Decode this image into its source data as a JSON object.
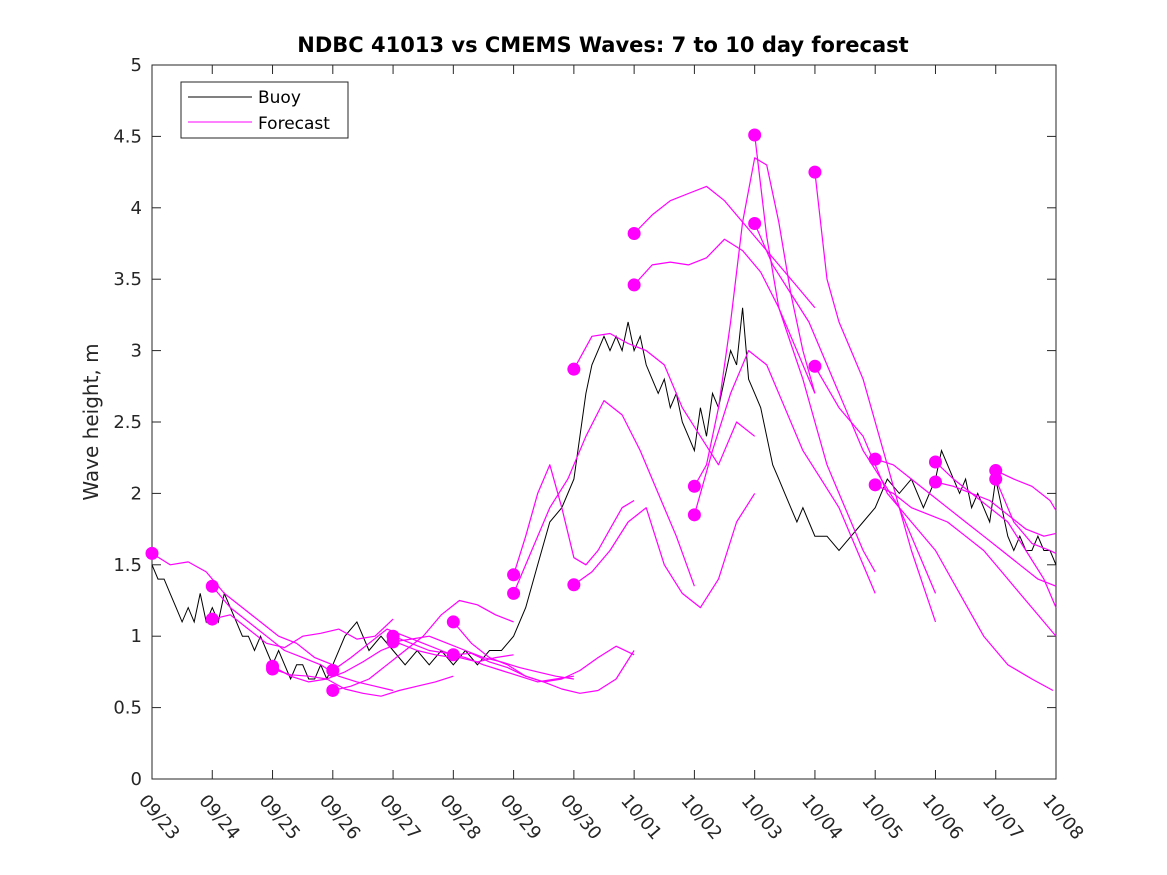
{
  "chart_data": {
    "type": "line",
    "title": "NDBC 41013 vs CMEMS Waves: 7 to 10 day forecast",
    "xlabel": "",
    "ylabel": "Wave height, m",
    "xlim": [
      0,
      15
    ],
    "ylim": [
      0,
      5
    ],
    "x_tick_labels": [
      "09/23",
      "09/24",
      "09/25",
      "09/26",
      "09/27",
      "09/28",
      "09/29",
      "09/30",
      "10/01",
      "10/02",
      "10/03",
      "10/04",
      "10/05",
      "10/06",
      "10/07",
      "10/08"
    ],
    "y_tick_labels": [
      "0",
      "0.5",
      "1",
      "1.5",
      "2",
      "2.5",
      "3",
      "3.5",
      "4",
      "4.5",
      "5"
    ],
    "legend": [
      "Buoy",
      "Forecast"
    ],
    "legend_position": "top-left",
    "colors": {
      "buoy": "#000000",
      "forecast": "#ff00ff",
      "axes": "#262626"
    },
    "buoy": {
      "name": "Buoy",
      "x": [
        0,
        0.1,
        0.2,
        0.3,
        0.4,
        0.5,
        0.6,
        0.7,
        0.8,
        0.9,
        1.0,
        1.1,
        1.2,
        1.3,
        1.4,
        1.5,
        1.6,
        1.7,
        1.8,
        1.9,
        2.0,
        2.1,
        2.2,
        2.3,
        2.4,
        2.5,
        2.6,
        2.7,
        2.8,
        2.9,
        3.0,
        3.2,
        3.4,
        3.6,
        3.8,
        4.0,
        4.2,
        4.4,
        4.6,
        4.8,
        5.0,
        5.2,
        5.4,
        5.6,
        5.8,
        6.0,
        6.2,
        6.4,
        6.6,
        6.8,
        7.0,
        7.1,
        7.2,
        7.3,
        7.4,
        7.5,
        7.6,
        7.7,
        7.8,
        7.9,
        8.0,
        8.1,
        8.2,
        8.3,
        8.4,
        8.5,
        8.6,
        8.7,
        8.8,
        8.9,
        9.0,
        9.1,
        9.2,
        9.3,
        9.4,
        9.5,
        9.6,
        9.7,
        9.8,
        9.9,
        10.0,
        10.1,
        10.2,
        10.3,
        10.4,
        10.5,
        10.6,
        10.7,
        10.8,
        10.9,
        11.0,
        11.2,
        11.4,
        11.6,
        11.8,
        12.0,
        12.1,
        12.2,
        12.4,
        12.6,
        12.8,
        13.0,
        13.1,
        13.2,
        13.3,
        13.4,
        13.5,
        13.6,
        13.7,
        13.8,
        13.9,
        14.0,
        14.1,
        14.2,
        14.3,
        14.4,
        14.5,
        14.6,
        14.7,
        14.8,
        14.9,
        15.0
      ],
      "values": [
        1.5,
        1.4,
        1.4,
        1.3,
        1.2,
        1.1,
        1.2,
        1.1,
        1.3,
        1.1,
        1.2,
        1.1,
        1.3,
        1.2,
        1.1,
        1.0,
        1.0,
        0.9,
        1.0,
        0.9,
        0.8,
        0.9,
        0.8,
        0.7,
        0.8,
        0.8,
        0.7,
        0.7,
        0.8,
        0.7,
        0.8,
        1.0,
        1.1,
        0.9,
        1.0,
        0.9,
        0.8,
        0.9,
        0.8,
        0.9,
        0.8,
        0.9,
        0.8,
        0.9,
        0.9,
        1.0,
        1.2,
        1.5,
        1.8,
        1.9,
        2.1,
        2.4,
        2.7,
        2.9,
        3.0,
        3.1,
        3.0,
        3.1,
        3.0,
        3.2,
        3.0,
        3.1,
        2.9,
        2.8,
        2.7,
        2.8,
        2.6,
        2.7,
        2.5,
        2.4,
        2.3,
        2.6,
        2.4,
        2.7,
        2.6,
        2.8,
        3.0,
        2.9,
        3.3,
        2.8,
        2.7,
        2.6,
        2.4,
        2.2,
        2.1,
        2.0,
        1.9,
        1.8,
        1.9,
        1.8,
        1.7,
        1.7,
        1.6,
        1.7,
        1.8,
        1.9,
        2.0,
        2.1,
        2.0,
        2.1,
        1.9,
        2.1,
        2.3,
        2.2,
        2.1,
        2.0,
        2.1,
        1.9,
        2.0,
        1.9,
        1.8,
        2.1,
        1.9,
        1.7,
        1.6,
        1.7,
        1.6,
        1.6,
        1.7,
        1.6,
        1.6,
        1.5
      ]
    },
    "forecast_series": [
      {
        "x": [
          0,
          0.3,
          0.6,
          0.9,
          1.2,
          1.5,
          1.8,
          2.1,
          2.4,
          2.7,
          3.0
        ],
        "values": [
          1.58,
          1.5,
          1.52,
          1.45,
          1.3,
          1.2,
          1.1,
          1.0,
          0.95,
          0.85,
          0.8
        ]
      },
      {
        "x": [
          1,
          1.3,
          1.6,
          1.9,
          2.2,
          2.5,
          2.8,
          3.1,
          3.4,
          3.7,
          4.0
        ],
        "values": [
          1.35,
          1.2,
          1.1,
          1.0,
          0.9,
          0.85,
          0.8,
          0.72,
          0.68,
          0.65,
          0.62
        ]
      },
      {
        "x": [
          1,
          1.3,
          1.6,
          1.9,
          2.2,
          2.5,
          2.8,
          3.1,
          3.4,
          3.7,
          4.0
        ],
        "values": [
          1.12,
          1.15,
          1.05,
          0.95,
          0.92,
          1.0,
          1.02,
          1.05,
          0.98,
          1.0,
          1.12
        ]
      },
      {
        "x": [
          2,
          2.3,
          2.6,
          2.9,
          3.2,
          3.5,
          3.8,
          4.1,
          4.4,
          4.7,
          5.0
        ],
        "values": [
          0.79,
          0.72,
          0.68,
          0.7,
          0.75,
          0.82,
          0.9,
          0.95,
          0.9,
          0.87,
          0.85
        ]
      },
      {
        "x": [
          2,
          2.3,
          2.6,
          2.9,
          3.2,
          3.5,
          3.8,
          4.1,
          4.4,
          4.7,
          5.0
        ],
        "values": [
          0.77,
          0.73,
          0.72,
          0.7,
          0.63,
          0.6,
          0.58,
          0.62,
          0.65,
          0.68,
          0.72
        ]
      },
      {
        "x": [
          3,
          3.3,
          3.6,
          3.9,
          4.2,
          4.5,
          4.8,
          5.1,
          5.4,
          5.7,
          6.0
        ],
        "values": [
          0.76,
          0.85,
          0.95,
          1.05,
          1.0,
          0.95,
          0.9,
          0.85,
          0.82,
          0.85,
          0.87
        ]
      },
      {
        "x": [
          3,
          3.3,
          3.6,
          3.9,
          4.2,
          4.5,
          4.8,
          5.1,
          5.4,
          5.7,
          6.0
        ],
        "values": [
          0.62,
          0.65,
          0.7,
          0.8,
          0.9,
          1.0,
          1.15,
          1.25,
          1.22,
          1.15,
          1.1
        ]
      },
      {
        "x": [
          4,
          4.3,
          4.6,
          4.9,
          5.2,
          5.5,
          5.8,
          6.1,
          6.4,
          6.7,
          7.0
        ],
        "values": [
          0.96,
          0.98,
          1.0,
          0.95,
          0.9,
          0.85,
          0.82,
          0.78,
          0.75,
          0.72,
          0.7
        ]
      },
      {
        "x": [
          4,
          4.3,
          4.6,
          4.9,
          5.2,
          5.5,
          5.8,
          6.1,
          6.4,
          6.7,
          7.0
        ],
        "values": [
          1.0,
          0.95,
          0.9,
          0.88,
          0.85,
          0.8,
          0.76,
          0.72,
          0.68,
          0.7,
          0.72
        ]
      },
      {
        "x": [
          5,
          5.3,
          5.6,
          5.9,
          6.2,
          6.5,
          6.8,
          7.1,
          7.4,
          7.7,
          8.0
        ],
        "values": [
          0.87,
          0.88,
          0.82,
          0.78,
          0.72,
          0.68,
          0.7,
          0.76,
          0.85,
          0.93,
          0.87
        ]
      },
      {
        "x": [
          5,
          5.3,
          5.6,
          5.9,
          6.2,
          6.5,
          6.8,
          7.1,
          7.4,
          7.7,
          8.0
        ],
        "values": [
          1.1,
          0.95,
          0.85,
          0.8,
          0.72,
          0.68,
          0.63,
          0.6,
          0.62,
          0.7,
          0.9
        ]
      },
      {
        "x": [
          6,
          6.2,
          6.4,
          6.6,
          6.8,
          7.0,
          7.2,
          7.4,
          7.6,
          7.8,
          8.0
        ],
        "values": [
          1.43,
          1.7,
          2.0,
          2.2,
          1.9,
          1.55,
          1.5,
          1.6,
          1.75,
          1.9,
          1.95
        ]
      },
      {
        "x": [
          6,
          6.3,
          6.6,
          6.9,
          7.2,
          7.5,
          7.8,
          8.1,
          8.4,
          8.7,
          9.0
        ],
        "values": [
          1.3,
          1.6,
          1.9,
          2.1,
          2.4,
          2.65,
          2.55,
          2.3,
          2.0,
          1.7,
          1.35
        ]
      },
      {
        "x": [
          7,
          7.3,
          7.6,
          7.9,
          8.2,
          8.5,
          8.8,
          9.1,
          9.4,
          9.7,
          10.0
        ],
        "values": [
          2.87,
          3.1,
          3.12,
          3.05,
          3.0,
          2.9,
          2.6,
          2.4,
          2.2,
          2.5,
          2.4
        ]
      },
      {
        "x": [
          7,
          7.3,
          7.6,
          7.9,
          8.2,
          8.5,
          8.8,
          9.1,
          9.4,
          9.7,
          10.0
        ],
        "values": [
          1.36,
          1.45,
          1.6,
          1.8,
          1.9,
          1.5,
          1.3,
          1.2,
          1.4,
          1.8,
          2.0
        ]
      },
      {
        "x": [
          8,
          8.3,
          8.6,
          8.9,
          9.2,
          9.5,
          9.8,
          10.1,
          10.4,
          10.7,
          11.0
        ],
        "values": [
          3.82,
          3.95,
          4.05,
          4.1,
          4.15,
          4.05,
          3.9,
          3.75,
          3.6,
          3.45,
          3.3
        ]
      },
      {
        "x": [
          8,
          8.3,
          8.6,
          8.9,
          9.2,
          9.5,
          9.8,
          10.1,
          10.4,
          10.7,
          11.0
        ],
        "values": [
          3.46,
          3.6,
          3.62,
          3.6,
          3.65,
          3.78,
          3.7,
          3.55,
          3.3,
          3.0,
          2.7
        ]
      },
      {
        "x": [
          9,
          9.2,
          9.4,
          9.6,
          9.8,
          10.0,
          10.2,
          10.4,
          10.6,
          10.8,
          11.0
        ],
        "values": [
          2.05,
          2.2,
          2.6,
          3.2,
          3.9,
          4.35,
          4.3,
          3.9,
          3.4,
          3.0,
          2.7
        ]
      },
      {
        "x": [
          9,
          9.3,
          9.6,
          9.9,
          10.2,
          10.5,
          10.8,
          11.1,
          11.4,
          11.7,
          12.0
        ],
        "values": [
          1.85,
          2.3,
          2.7,
          3.0,
          2.9,
          2.6,
          2.3,
          2.1,
          1.9,
          1.6,
          1.3
        ]
      },
      {
        "x": [
          10,
          10.2,
          10.4,
          10.6,
          10.8,
          11.0,
          11.2,
          11.4,
          11.6,
          11.8,
          12.0
        ],
        "values": [
          4.51,
          3.8,
          3.3,
          3.05,
          2.8,
          2.5,
          2.2,
          2.0,
          1.8,
          1.6,
          1.45
        ]
      },
      {
        "x": [
          10,
          10.3,
          10.6,
          10.9,
          11.2,
          11.5,
          11.8,
          12.1,
          12.4,
          12.7,
          13.0
        ],
        "values": [
          3.89,
          3.6,
          3.4,
          3.2,
          2.9,
          2.6,
          2.3,
          2.1,
          1.9,
          1.6,
          1.3
        ]
      },
      {
        "x": [
          11,
          11.2,
          11.4,
          11.6,
          11.8,
          12.0,
          12.2,
          12.4,
          12.6,
          12.8,
          13.0
        ],
        "values": [
          4.25,
          3.5,
          3.2,
          3.0,
          2.8,
          2.5,
          2.2,
          1.9,
          1.6,
          1.35,
          1.1
        ]
      },
      {
        "x": [
          11,
          11.4,
          11.8,
          12.2,
          12.6,
          13.0,
          13.4,
          13.8,
          14.2,
          14.6,
          14.95
        ],
        "values": [
          2.89,
          2.6,
          2.4,
          2.0,
          1.8,
          1.6,
          1.3,
          1.0,
          0.8,
          0.7,
          0.62
        ]
      },
      {
        "x": [
          12,
          12.3,
          12.6,
          12.9,
          13.2,
          13.5,
          13.8,
          14.1,
          14.4,
          14.7,
          15.0
        ],
        "values": [
          2.24,
          2.2,
          2.1,
          2.0,
          1.9,
          1.8,
          1.7,
          1.6,
          1.5,
          1.4,
          1.35
        ]
      },
      {
        "x": [
          12,
          12.3,
          12.6,
          12.9,
          13.2,
          13.5,
          13.8,
          14.1,
          14.4,
          14.7,
          15.0
        ],
        "values": [
          2.06,
          2.0,
          1.9,
          1.85,
          1.8,
          1.7,
          1.6,
          1.45,
          1.3,
          1.15,
          1.0
        ]
      },
      {
        "x": [
          13,
          13.3,
          13.6,
          13.9,
          14.2,
          14.5,
          14.8,
          15.0
        ],
        "values": [
          2.22,
          2.1,
          2.0,
          1.9,
          1.8,
          1.6,
          1.4,
          1.2
        ]
      },
      {
        "x": [
          13,
          13.3,
          13.6,
          13.9,
          14.2,
          14.5,
          14.8,
          15.0
        ],
        "values": [
          2.08,
          2.05,
          2.0,
          1.95,
          1.85,
          1.75,
          1.7,
          1.72
        ]
      },
      {
        "x": [
          14,
          14.3,
          14.6,
          14.9,
          15.0
        ],
        "values": [
          2.16,
          2.1,
          2.05,
          1.95,
          1.88
        ]
      },
      {
        "x": [
          14,
          14.3,
          14.6,
          14.9,
          15.0
        ],
        "values": [
          2.1,
          1.8,
          1.65,
          1.6,
          1.58
        ]
      }
    ]
  }
}
